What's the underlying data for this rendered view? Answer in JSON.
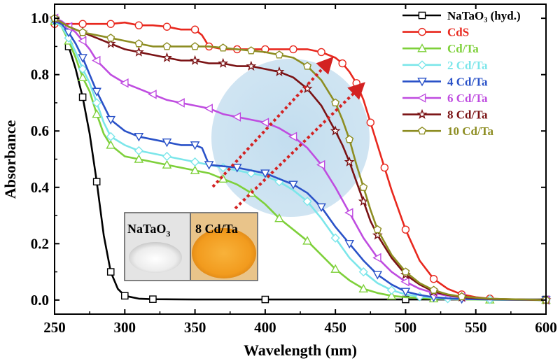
{
  "chart_data": {
    "type": "line",
    "title": "",
    "xlabel": "Wavelength (nm)",
    "ylabel": "Absorbance",
    "xlim": [
      250,
      600
    ],
    "ylim": [
      -0.05,
      1.05
    ],
    "xticks": [
      250,
      300,
      350,
      400,
      450,
      500,
      550,
      600
    ],
    "yticks": [
      0.0,
      0.2,
      0.4,
      0.6,
      0.8,
      1.0
    ],
    "xtick_labels": [
      "250",
      "300",
      "350",
      "400",
      "450",
      "500",
      "550",
      "600"
    ],
    "ytick_labels": [
      "0.0",
      "0.2",
      "0.4",
      "0.6",
      "0.8",
      "1.0"
    ],
    "legend_position": "top-right",
    "series": [
      {
        "name": "NaTaO₃ (hyd.)",
        "color": "#000000",
        "marker": "square",
        "x": [
          260,
          265,
          270,
          275,
          280,
          285,
          290,
          295,
          300,
          310,
          320,
          350,
          400,
          450,
          500,
          550,
          600
        ],
        "y": [
          0.9,
          0.82,
          0.72,
          0.59,
          0.42,
          0.23,
          0.1,
          0.04,
          0.015,
          0.005,
          0.003,
          0.002,
          0.002,
          0.002,
          0.002,
          0.002,
          0.002
        ]
      },
      {
        "name": "CdS",
        "color": "#e8281e",
        "marker": "circle",
        "x": [
          250,
          260,
          270,
          280,
          290,
          300,
          310,
          320,
          330,
          340,
          350,
          355,
          360,
          370,
          380,
          390,
          400,
          410,
          420,
          430,
          440,
          450,
          455,
          460,
          465,
          470,
          475,
          480,
          485,
          490,
          500,
          510,
          520,
          530,
          540,
          550,
          560,
          580,
          600
        ],
        "y": [
          0.98,
          0.98,
          0.98,
          0.98,
          0.98,
          0.985,
          0.975,
          0.975,
          0.97,
          0.96,
          0.96,
          0.94,
          0.9,
          0.89,
          0.89,
          0.89,
          0.89,
          0.89,
          0.89,
          0.89,
          0.88,
          0.86,
          0.84,
          0.81,
          0.77,
          0.71,
          0.63,
          0.55,
          0.47,
          0.39,
          0.25,
          0.14,
          0.075,
          0.04,
          0.02,
          0.01,
          0.005,
          0.002,
          0.0
        ]
      },
      {
        "name": "Cd/Ta",
        "color": "#7ed03a",
        "marker": "triangle-up",
        "x": [
          250,
          255,
          260,
          265,
          270,
          275,
          280,
          285,
          290,
          300,
          310,
          320,
          330,
          340,
          350,
          360,
          370,
          380,
          390,
          400,
          410,
          420,
          430,
          440,
          450,
          460,
          470,
          480,
          490,
          500,
          520,
          540,
          560,
          600
        ],
        "y": [
          0.99,
          0.97,
          0.92,
          0.86,
          0.79,
          0.74,
          0.66,
          0.59,
          0.55,
          0.51,
          0.5,
          0.49,
          0.48,
          0.47,
          0.46,
          0.45,
          0.43,
          0.41,
          0.38,
          0.34,
          0.29,
          0.25,
          0.21,
          0.16,
          0.11,
          0.07,
          0.04,
          0.025,
          0.015,
          0.01,
          0.005,
          0.002,
          0.001,
          0.0
        ]
      },
      {
        "name": "2 Cd/Ta",
        "color": "#7ce6ea",
        "marker": "diamond",
        "x": [
          250,
          255,
          260,
          265,
          270,
          275,
          280,
          285,
          290,
          300,
          310,
          320,
          330,
          340,
          350,
          360,
          370,
          380,
          390,
          400,
          410,
          420,
          430,
          440,
          450,
          460,
          470,
          480,
          490,
          500,
          510,
          520,
          530,
          540,
          560,
          580,
          600
        ],
        "y": [
          0.99,
          0.97,
          0.93,
          0.88,
          0.82,
          0.77,
          0.7,
          0.63,
          0.58,
          0.55,
          0.53,
          0.52,
          0.51,
          0.5,
          0.49,
          0.48,
          0.47,
          0.46,
          0.45,
          0.44,
          0.42,
          0.39,
          0.35,
          0.29,
          0.22,
          0.15,
          0.1,
          0.06,
          0.035,
          0.02,
          0.012,
          0.008,
          0.005,
          0.003,
          0.002,
          0.001,
          0.0
        ]
      },
      {
        "name": "4 Cd/Ta",
        "color": "#2a52c8",
        "marker": "triangle-down",
        "x": [
          250,
          255,
          260,
          265,
          270,
          275,
          280,
          285,
          290,
          300,
          310,
          320,
          330,
          340,
          350,
          355,
          360,
          370,
          380,
          390,
          400,
          410,
          420,
          430,
          440,
          450,
          460,
          470,
          480,
          490,
          500,
          510,
          520,
          530,
          540,
          560,
          600
        ],
        "y": [
          0.99,
          0.98,
          0.95,
          0.91,
          0.86,
          0.8,
          0.74,
          0.69,
          0.64,
          0.6,
          0.58,
          0.57,
          0.56,
          0.55,
          0.55,
          0.54,
          0.48,
          0.475,
          0.47,
          0.46,
          0.45,
          0.43,
          0.41,
          0.38,
          0.33,
          0.26,
          0.2,
          0.14,
          0.09,
          0.055,
          0.03,
          0.018,
          0.01,
          0.006,
          0.004,
          0.002,
          0.0
        ]
      },
      {
        "name": "6 Cd/Ta",
        "color": "#bf4ce0",
        "marker": "triangle-left",
        "x": [
          250,
          255,
          260,
          265,
          270,
          275,
          280,
          290,
          300,
          310,
          320,
          330,
          340,
          350,
          360,
          370,
          380,
          390,
          400,
          410,
          420,
          430,
          440,
          450,
          460,
          470,
          480,
          490,
          500,
          510,
          520,
          530,
          540,
          560,
          600
        ],
        "y": [
          1.0,
          0.99,
          0.97,
          0.95,
          0.92,
          0.89,
          0.85,
          0.8,
          0.77,
          0.75,
          0.73,
          0.71,
          0.7,
          0.69,
          0.68,
          0.66,
          0.65,
          0.64,
          0.63,
          0.61,
          0.58,
          0.54,
          0.48,
          0.4,
          0.31,
          0.22,
          0.15,
          0.1,
          0.065,
          0.04,
          0.025,
          0.015,
          0.01,
          0.004,
          0.0
        ]
      },
      {
        "name": "8 Cd/Ta",
        "color": "#7a1214",
        "marker": "star",
        "x": [
          250,
          260,
          270,
          280,
          290,
          300,
          310,
          320,
          330,
          340,
          350,
          360,
          370,
          380,
          390,
          400,
          410,
          420,
          430,
          440,
          450,
          455,
          460,
          465,
          470,
          475,
          480,
          490,
          500,
          510,
          520,
          530,
          540,
          560,
          600
        ],
        "y": [
          1.0,
          0.97,
          0.95,
          0.93,
          0.91,
          0.89,
          0.88,
          0.87,
          0.86,
          0.85,
          0.85,
          0.84,
          0.84,
          0.83,
          0.83,
          0.82,
          0.81,
          0.79,
          0.75,
          0.69,
          0.6,
          0.55,
          0.49,
          0.42,
          0.35,
          0.28,
          0.23,
          0.15,
          0.09,
          0.055,
          0.03,
          0.018,
          0.01,
          0.004,
          0.0
        ]
      },
      {
        "name": "10 Cd/Ta",
        "color": "#8d8d22",
        "marker": "pentagon",
        "x": [
          250,
          260,
          270,
          280,
          290,
          300,
          310,
          320,
          330,
          340,
          350,
          360,
          370,
          380,
          390,
          400,
          410,
          420,
          430,
          440,
          450,
          455,
          460,
          465,
          470,
          475,
          480,
          490,
          500,
          510,
          520,
          530,
          540,
          560,
          600
        ],
        "y": [
          1.0,
          0.97,
          0.95,
          0.94,
          0.93,
          0.92,
          0.91,
          0.9,
          0.9,
          0.9,
          0.9,
          0.9,
          0.895,
          0.89,
          0.885,
          0.88,
          0.87,
          0.86,
          0.83,
          0.78,
          0.7,
          0.64,
          0.57,
          0.48,
          0.4,
          0.32,
          0.25,
          0.16,
          0.1,
          0.06,
          0.035,
          0.02,
          0.012,
          0.005,
          0.0
        ]
      }
    ],
    "inset": {
      "labels": [
        {
          "text": "NaTaO",
          "subscript": "3"
        },
        {
          "text": "8 Cd/Ta",
          "subscript": ""
        }
      ],
      "colors": {
        "left_photo": "#f2f2f2",
        "right_photo": "#f5a623"
      }
    },
    "annotation": {
      "shade_color": "#a9cfe8",
      "arrow_color": "#d32222"
    }
  }
}
